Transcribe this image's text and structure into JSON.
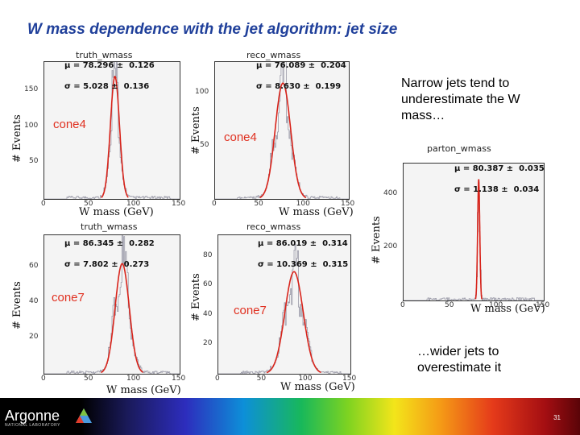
{
  "title": "W mass dependence with the jet algorithm: jet size",
  "notes": {
    "narrow": "Narrow jets tend to underestimate the W mass…",
    "wide": "…wider jets to overestimate it"
  },
  "axis": {
    "ylabel": "# Events",
    "xlabel": "W mass (GeV)"
  },
  "plots": [
    {
      "name": "truth_wmass",
      "mu": "78.296",
      "mu_err": "0.126",
      "sigma": "5.028",
      "sigma_err": "0.136",
      "cone": "cone4",
      "yticks": [
        "50",
        "100",
        "150"
      ],
      "xticks": [
        "0",
        "50",
        "100",
        "150"
      ]
    },
    {
      "name": "reco_wmass",
      "mu": "76.089",
      "mu_err": "0.204",
      "sigma": "8.630",
      "sigma_err": "0.199",
      "cone": "cone4",
      "yticks": [
        "50",
        "100"
      ],
      "xticks": [
        "0",
        "50",
        "100",
        "150"
      ]
    },
    {
      "name": "truth_wmass",
      "mu": "86.345",
      "mu_err": "0.282",
      "sigma": "7.802",
      "sigma_err": "0.273",
      "cone": "cone7",
      "yticks": [
        "20",
        "40",
        "60"
      ],
      "xticks": [
        "0",
        "50",
        "100",
        "150"
      ]
    },
    {
      "name": "reco_wmass",
      "mu": "86.019",
      "mu_err": "0.314",
      "sigma": "10.369",
      "sigma_err": "0.315",
      "cone": "cone7",
      "yticks": [
        "20",
        "40",
        "60",
        "80"
      ],
      "xticks": [
        "0",
        "50",
        "100",
        "150"
      ]
    },
    {
      "name": "parton_wmass",
      "mu": "80.387",
      "mu_err": "0.035",
      "sigma": "1.138",
      "sigma_err": "0.034",
      "cone": "",
      "yticks": [
        "200",
        "400"
      ],
      "xticks": [
        "0",
        "50",
        "100",
        "150"
      ]
    }
  ],
  "chart_data": [
    {
      "type": "line",
      "title": "truth_wmass",
      "xlabel": "W mass (GeV)",
      "ylabel": "# Events",
      "xlim": [
        0,
        150
      ],
      "ylim": [
        0,
        190
      ],
      "fit": {
        "mu": 78.296,
        "sigma": 5.028,
        "peak": 170
      }
    },
    {
      "type": "line",
      "title": "reco_wmass",
      "xlabel": "W mass (GeV)",
      "ylabel": "# Events",
      "xlim": [
        0,
        150
      ],
      "ylim": [
        0,
        130
      ],
      "fit": {
        "mu": 76.089,
        "sigma": 8.63,
        "peak": 110
      }
    },
    {
      "type": "line",
      "title": "truth_wmass",
      "xlabel": "W mass (GeV)",
      "ylabel": "# Events",
      "xlim": [
        0,
        150
      ],
      "ylim": [
        0,
        78
      ],
      "fit": {
        "mu": 86.345,
        "sigma": 7.802,
        "peak": 62
      }
    },
    {
      "type": "line",
      "title": "reco_wmass",
      "xlabel": "W mass (GeV)",
      "ylabel": "# Events",
      "xlim": [
        0,
        150
      ],
      "ylim": [
        0,
        95
      ],
      "fit": {
        "mu": 86.019,
        "sigma": 10.369,
        "peak": 70
      }
    },
    {
      "type": "line",
      "title": "parton_wmass",
      "xlabel": "W mass (GeV)",
      "ylabel": "# Events",
      "xlim": [
        0,
        150
      ],
      "ylim": [
        0,
        520
      ],
      "fit": {
        "mu": 80.387,
        "sigma": 1.138,
        "peak": 460
      }
    }
  ],
  "footer": {
    "logo": "Argonne",
    "logo_sub": "NATIONAL LABORATORY",
    "page": "31"
  }
}
